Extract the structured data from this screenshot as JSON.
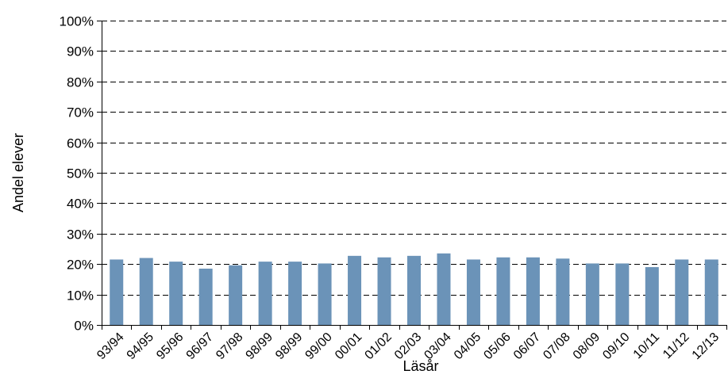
{
  "chart_data": {
    "type": "bar",
    "title": "",
    "xlabel": "Läsår",
    "ylabel": "Andel elever",
    "ylim": [
      0,
      100
    ],
    "yticks": [
      "0%",
      "10%",
      "20%",
      "30%",
      "40%",
      "50%",
      "60%",
      "70%",
      "80%",
      "90%",
      "100%"
    ],
    "grid": "horizontal dashed",
    "legend": "none",
    "bar_color": "#6b93b8",
    "categories": [
      "93/94",
      "94/95",
      "95/96",
      "96/97",
      "97/98",
      "98/99",
      "98/99",
      "99/00",
      "00/01",
      "01/02",
      "02/03",
      "03/04",
      "04/05",
      "05/06",
      "06/07",
      "07/08",
      "08/09",
      "09/10",
      "10/11",
      "11/12",
      "12/13"
    ],
    "values": [
      21.5,
      22,
      20.8,
      18.5,
      19.6,
      20.8,
      20.8,
      20.2,
      22.7,
      22.2,
      22.7,
      23.5,
      21.5,
      22.2,
      22.2,
      21.8,
      20.2,
      20.2,
      19,
      21.5,
      21.5
    ]
  }
}
